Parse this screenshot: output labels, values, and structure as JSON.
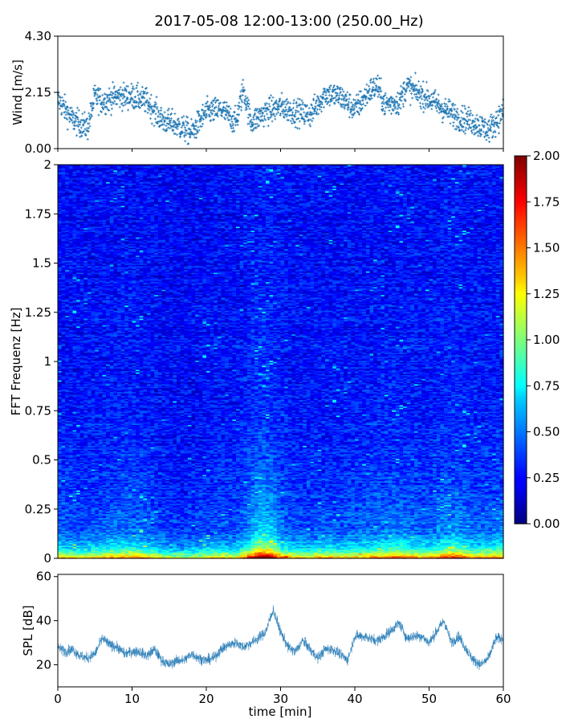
{
  "title": "2017-05-08 12:00-13:00 (250.00_Hz)",
  "chart_data": [
    {
      "id": "wind",
      "type": "scatter",
      "ylabel": "Wind [m/s]",
      "xlim": [
        0,
        60
      ],
      "ylim": [
        0,
        4.3
      ],
      "y_ticks": [
        0,
        2.15,
        4.3
      ],
      "y_tick_labels": [
        "0.00",
        "2.15",
        "4.30"
      ],
      "marker": "+",
      "color": "#1f77b4",
      "x_min_step": 0.033,
      "envelope": {
        "x": [
          0,
          2,
          4,
          5,
          6,
          8,
          10,
          12,
          14,
          16,
          18,
          20,
          22,
          24,
          25,
          26,
          28,
          30,
          32,
          34,
          36,
          38,
          40,
          42,
          43,
          44,
          46,
          47,
          48,
          50,
          52,
          54,
          56,
          58,
          60
        ],
        "y": [
          1.9,
          1.1,
          0.8,
          2.0,
          1.8,
          2.0,
          2.0,
          1.8,
          1.1,
          0.9,
          0.6,
          1.4,
          1.5,
          1.0,
          2.3,
          1.0,
          1.4,
          1.6,
          1.4,
          1.3,
          2.1,
          2.0,
          1.5,
          2.2,
          2.4,
          1.7,
          1.8,
          2.4,
          2.2,
          1.9,
          1.5,
          1.2,
          1.0,
          0.7,
          1.4
        ]
      }
    },
    {
      "id": "spectrogram",
      "type": "heatmap",
      "ylabel": "FFT Frequenz [Hz]",
      "xlim": [
        0,
        60
      ],
      "ylim": [
        0,
        2
      ],
      "y_ticks": [
        0,
        0.25,
        0.5,
        0.75,
        1,
        1.25,
        1.5,
        1.75,
        2
      ],
      "y_tick_labels": [
        "0",
        "0.25",
        "0.5",
        "0.75",
        "1",
        "1.25",
        "1.5",
        "1.75",
        "2"
      ],
      "colormap": "jet",
      "colorbar": {
        "range": [
          0,
          2
        ],
        "ticks": [
          0,
          0.25,
          0.5,
          0.75,
          1,
          1.25,
          1.5,
          1.75,
          2
        ],
        "tick_labels": [
          "0.00",
          "0.25",
          "0.50",
          "0.75",
          "1.00",
          "1.25",
          "1.50",
          "1.75",
          "2.00"
        ]
      },
      "n_time_bins": 120,
      "n_freq_bins": 300,
      "activity_by_time": {
        "t": [
          0,
          2,
          4,
          6,
          8,
          10,
          12,
          14,
          16,
          18,
          20,
          22,
          24,
          26,
          27,
          28,
          29,
          30,
          32,
          34,
          36,
          38,
          40,
          42,
          44,
          46,
          48,
          50,
          52,
          54,
          56,
          58,
          60
        ],
        "a": [
          0.5,
          0.45,
          0.4,
          0.5,
          0.55,
          0.6,
          0.5,
          0.35,
          0.3,
          0.3,
          0.4,
          0.45,
          0.4,
          0.75,
          1.0,
          1.0,
          0.9,
          0.6,
          0.45,
          0.45,
          0.5,
          0.45,
          0.5,
          0.55,
          0.6,
          0.65,
          0.55,
          0.5,
          0.7,
          0.75,
          0.5,
          0.55,
          0.6
        ]
      }
    },
    {
      "id": "spl",
      "type": "line",
      "ylabel": "SPL [dB]",
      "xlabel": "time [min]",
      "xlim": [
        0,
        60
      ],
      "ylim": [
        10,
        61
      ],
      "x_ticks": [
        0,
        10,
        20,
        30,
        40,
        50,
        60
      ],
      "x_tick_labels": [
        "0",
        "10",
        "20",
        "30",
        "40",
        "50",
        "60"
      ],
      "y_ticks": [
        20,
        40,
        60
      ],
      "y_tick_labels": [
        "20",
        "40",
        "60"
      ],
      "color": "#1f77b4",
      "envelope": {
        "x": [
          0,
          1,
          2,
          3,
          4,
          5,
          6,
          7,
          8,
          9,
          10,
          11,
          12,
          13,
          14,
          15,
          16,
          17,
          18,
          19,
          20,
          21,
          22,
          23,
          24,
          25,
          26,
          27,
          28,
          29,
          30,
          31,
          32,
          33,
          34,
          35,
          36,
          37,
          38,
          39,
          40,
          41,
          42,
          43,
          44,
          45,
          46,
          47,
          48,
          49,
          50,
          51,
          52,
          53,
          54,
          55,
          56,
          57,
          58,
          59,
          60
        ],
        "y": [
          28,
          26,
          27,
          24,
          23,
          25,
          32,
          29,
          28,
          25,
          26,
          26,
          24,
          27,
          22,
          20,
          22,
          22,
          25,
          23,
          22,
          23,
          27,
          29,
          30,
          28,
          30,
          32,
          35,
          45,
          35,
          28,
          26,
          31,
          27,
          23,
          27,
          27,
          25,
          22,
          33,
          33,
          32,
          31,
          33,
          36,
          39,
          32,
          33,
          33,
          30,
          35,
          40,
          30,
          33,
          27,
          22,
          20,
          23,
          32,
          32
        ]
      },
      "band_halfwidth_db": 3
    }
  ]
}
